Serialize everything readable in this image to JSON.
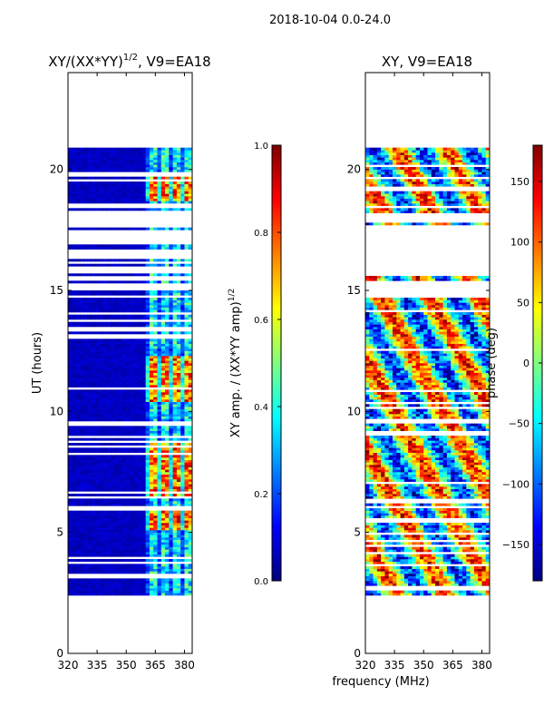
{
  "suptitle": "2018-10-04 0.0-24.0",
  "shared_xlabel": "frequency (MHz)",
  "colorscale": [
    "#00007f",
    "#0000ff",
    "#007fff",
    "#00ffff",
    "#7fff7f",
    "#ffff00",
    "#ff7f00",
    "#ff0000",
    "#7f0000"
  ],
  "chart_data": [
    {
      "type": "heatmap",
      "title": "XY/(XX*YY)",
      "title_exponent": "1/2",
      "title_suffix": ", V9=EA18",
      "xlabel": "",
      "ylabel": "UT (hours)",
      "xlim": [
        320,
        384
      ],
      "ylim": [
        0,
        24
      ],
      "xticks": [
        "320",
        "335",
        "350",
        "365",
        "380"
      ],
      "xtick_values": [
        320,
        335,
        350,
        365,
        380
      ],
      "yticks": [
        "0",
        "5",
        "10",
        "15",
        "20"
      ],
      "ytick_values": [
        0,
        5,
        10,
        15,
        20
      ],
      "data_time_range_hours": [
        2.4,
        20.9
      ],
      "bright_band_mhz": [
        361,
        382
      ],
      "colorbar": {
        "label": "XY amp. / (XX*YY amp)",
        "label_exponent": "1/2",
        "range": [
          0.0,
          1.0
        ],
        "ticks": [
          "0.0",
          "0.2",
          "0.4",
          "0.6",
          "0.8",
          "1.0"
        ],
        "tick_values": [
          0.0,
          0.2,
          0.4,
          0.6,
          0.8,
          1.0
        ]
      }
    },
    {
      "type": "heatmap",
      "title": "XY, V9=EA18",
      "xlabel": "",
      "ylabel": "",
      "xlim": [
        320,
        384
      ],
      "ylim": [
        0,
        24
      ],
      "xticks": [
        "320",
        "335",
        "350",
        "365",
        "380"
      ],
      "xtick_values": [
        320,
        335,
        350,
        365,
        380
      ],
      "yticks": [
        "0",
        "5",
        "10",
        "15",
        "20"
      ],
      "ytick_values": [
        0,
        5,
        10,
        15,
        20
      ],
      "data_time_range_hours": [
        2.4,
        20.9
      ],
      "colorbar": {
        "label": "phase (deg)",
        "range": [
          -180,
          180
        ],
        "ticks": [
          "−150",
          "−100",
          "−50",
          "0",
          "50",
          "100",
          "150"
        ],
        "tick_values": [
          -150,
          -100,
          -50,
          0,
          50,
          100,
          150
        ]
      }
    }
  ]
}
